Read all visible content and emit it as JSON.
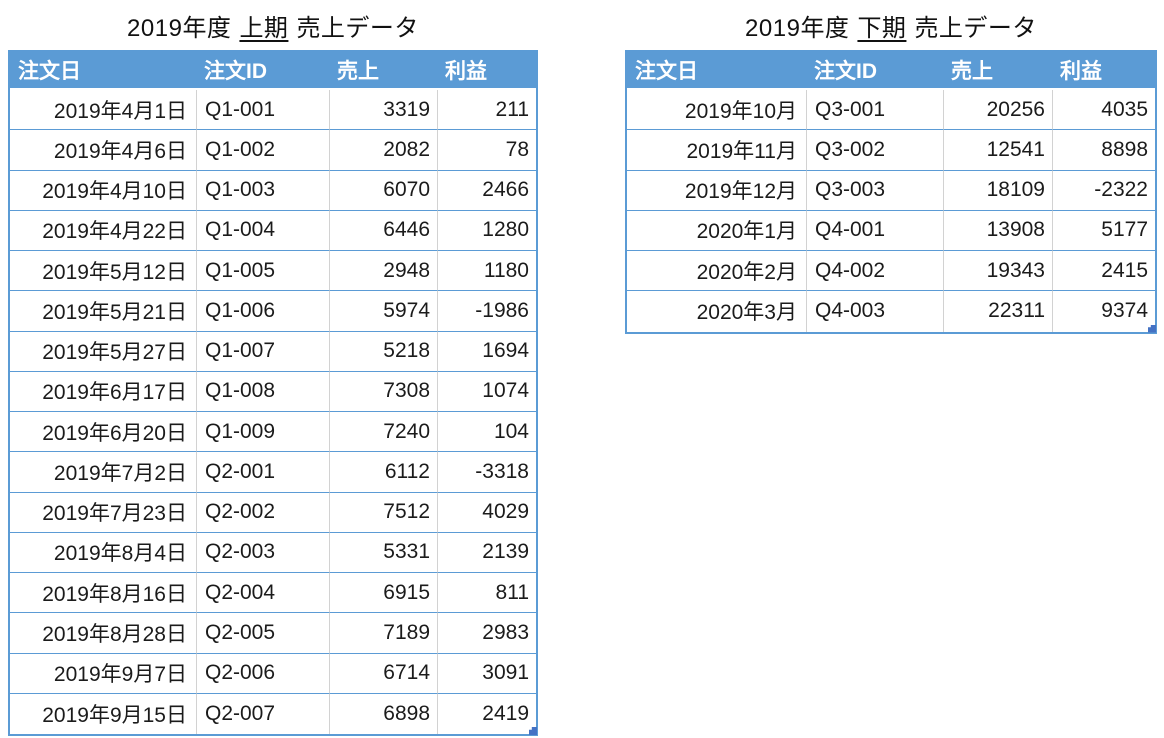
{
  "colors": {
    "header_bg": "#5B9BD5",
    "header_text": "#FFFFFF",
    "row_divider": "#5B9BD5",
    "column_divider": "#D2D2D2",
    "outer_border": "#5B9BD5",
    "resize_handle": "#4472C4",
    "body_text": "#1B1B1B",
    "background": "#FFFFFF"
  },
  "tables": [
    {
      "title": {
        "prefix": "2019年度",
        "period": "上期",
        "suffix": "売上データ"
      },
      "headers": [
        "注文日",
        "注文ID",
        "売上",
        "利益"
      ],
      "rows": [
        {
          "date": "2019年4月1日",
          "id": "Q1-001",
          "sales": 3319,
          "profit": 211
        },
        {
          "date": "2019年4月6日",
          "id": "Q1-002",
          "sales": 2082,
          "profit": 78
        },
        {
          "date": "2019年4月10日",
          "id": "Q1-003",
          "sales": 6070,
          "profit": 2466
        },
        {
          "date": "2019年4月22日",
          "id": "Q1-004",
          "sales": 6446,
          "profit": 1280
        },
        {
          "date": "2019年5月12日",
          "id": "Q1-005",
          "sales": 2948,
          "profit": 1180
        },
        {
          "date": "2019年5月21日",
          "id": "Q1-006",
          "sales": 5974,
          "profit": -1986
        },
        {
          "date": "2019年5月27日",
          "id": "Q1-007",
          "sales": 5218,
          "profit": 1694
        },
        {
          "date": "2019年6月17日",
          "id": "Q1-008",
          "sales": 7308,
          "profit": 1074
        },
        {
          "date": "2019年6月20日",
          "id": "Q1-009",
          "sales": 7240,
          "profit": 104
        },
        {
          "date": "2019年7月2日",
          "id": "Q2-001",
          "sales": 6112,
          "profit": -3318
        },
        {
          "date": "2019年7月23日",
          "id": "Q2-002",
          "sales": 7512,
          "profit": 4029
        },
        {
          "date": "2019年8月4日",
          "id": "Q2-003",
          "sales": 5331,
          "profit": 2139
        },
        {
          "date": "2019年8月16日",
          "id": "Q2-004",
          "sales": 6915,
          "profit": 811
        },
        {
          "date": "2019年8月28日",
          "id": "Q2-005",
          "sales": 7189,
          "profit": 2983
        },
        {
          "date": "2019年9月7日",
          "id": "Q2-006",
          "sales": 6714,
          "profit": 3091
        },
        {
          "date": "2019年9月15日",
          "id": "Q2-007",
          "sales": 6898,
          "profit": 2419
        }
      ]
    },
    {
      "title": {
        "prefix": "2019年度",
        "period": "下期",
        "suffix": "売上データ"
      },
      "headers": [
        "注文日",
        "注文ID",
        "売上",
        "利益"
      ],
      "rows": [
        {
          "date": "2019年10月",
          "id": "Q3-001",
          "sales": 20256,
          "profit": 4035
        },
        {
          "date": "2019年11月",
          "id": "Q3-002",
          "sales": 12541,
          "profit": 8898
        },
        {
          "date": "2019年12月",
          "id": "Q3-003",
          "sales": 18109,
          "profit": -2322
        },
        {
          "date": "2020年1月",
          "id": "Q4-001",
          "sales": 13908,
          "profit": 5177
        },
        {
          "date": "2020年2月",
          "id": "Q4-002",
          "sales": 19343,
          "profit": 2415
        },
        {
          "date": "2020年3月",
          "id": "Q4-003",
          "sales": 22311,
          "profit": 9374
        }
      ]
    }
  ]
}
